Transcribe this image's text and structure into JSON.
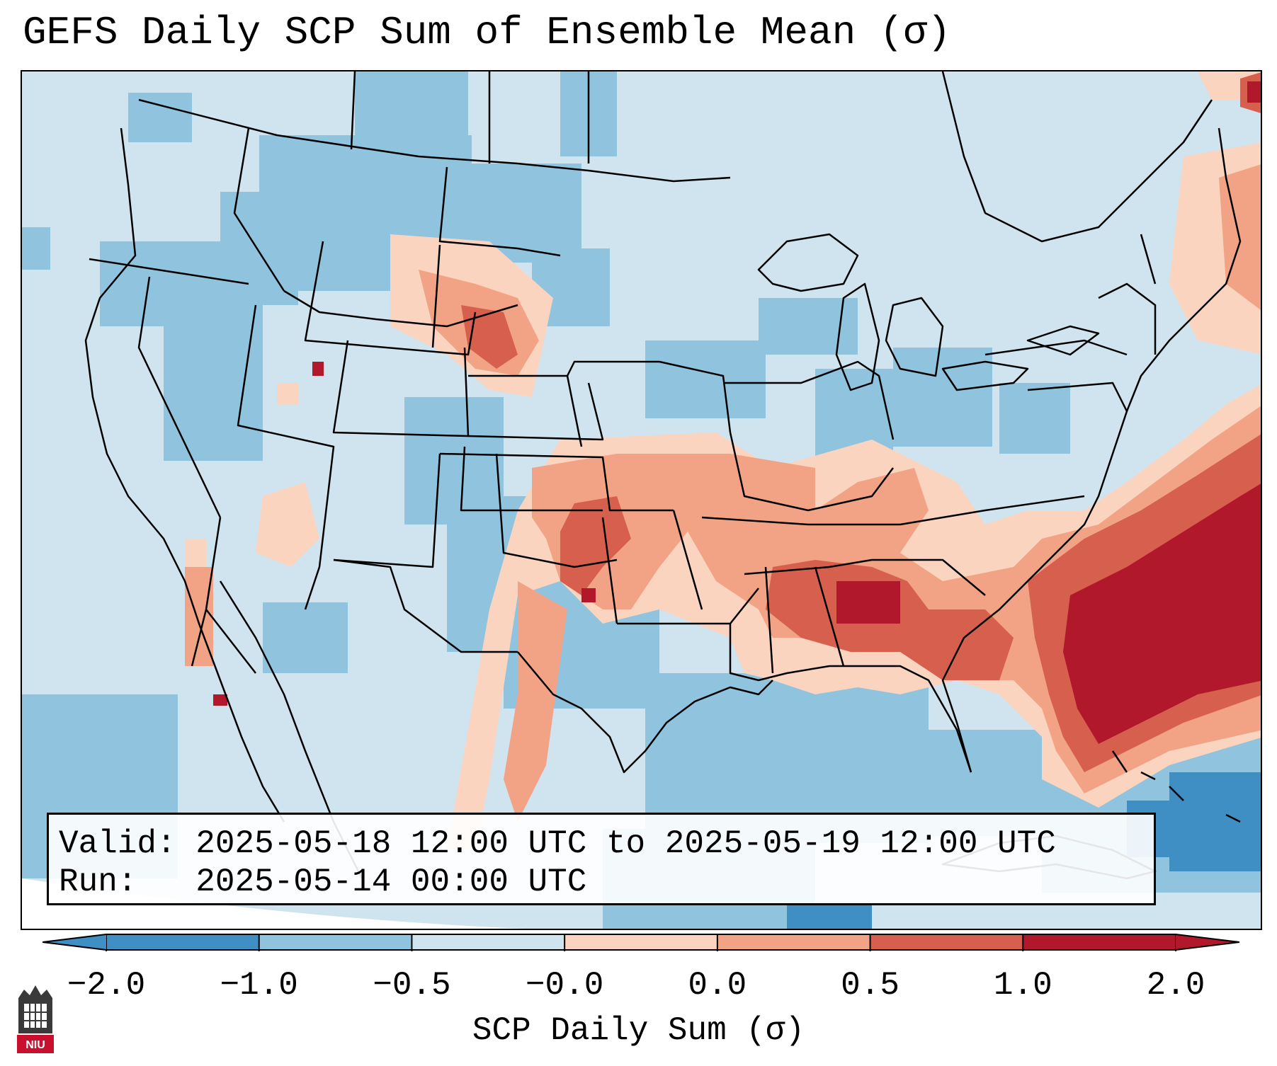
{
  "title": "GEFS Daily SCP Sum of Ensemble Mean (σ)",
  "info": {
    "valid_label": "Valid:",
    "valid_value": "2025-05-18 12:00 UTC to 2025-05-19 12:00 UTC",
    "run_label": "Run:",
    "run_value": "2025-05-14 00:00 UTC"
  },
  "colorbar": {
    "label": "SCP Daily Sum (σ)",
    "ticks": [
      "−2.0",
      "−1.0",
      "−0.5",
      "−0.0",
      "0.0",
      "0.5",
      "1.0",
      "2.0"
    ],
    "colors": [
      "#3f8fc5",
      "#90c3dd",
      "#d0e4ef",
      "#f7f7f7",
      "#fbd4c0",
      "#f2a385",
      "#d6604d",
      "#b2182b"
    ],
    "extend": "both"
  },
  "logo": {
    "text": "NIU"
  },
  "colors": {
    "strong_negative": "#3f8fc5",
    "negative": "#90c3dd",
    "weak_negative": "#d0e4ef",
    "near_zero": "#f7f7f7",
    "weak_positive": "#fbd4c0",
    "positive": "#f2a385",
    "strong_positive": "#d6604d",
    "very_strong_positive": "#b2182b"
  }
}
